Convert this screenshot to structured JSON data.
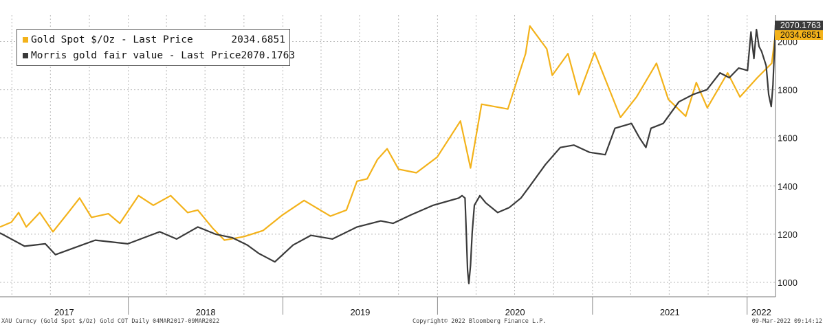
{
  "colors": {
    "gold": "#f3b21a",
    "fair": "#3a3a3a",
    "grid": "#b8b8b8",
    "text": "#111111"
  },
  "legend": {
    "gold_label": "Gold Spot $/Oz - Last Price",
    "gold_value": "2034.6851",
    "fair_label": "Morris gold fair value - Last Price",
    "fair_value": "2070.1763"
  },
  "tags": {
    "fair": "2070.1763",
    "gold": "2034.6851"
  },
  "footer": {
    "left": "XAU Curncy (Gold Spot  $/Oz) Gold COT  Daily 04MAR2017-09MAR2022",
    "center": "Copyright© 2022 Bloomberg Finance L.P.",
    "right": "09-Mar-2022 09:14:12"
  },
  "chart_data": {
    "type": "line",
    "x_start": "2017-03-04",
    "x_end": "2022-03-09",
    "ylim": [
      940,
      2110
    ],
    "y_ticks": [
      1000,
      1200,
      1400,
      1600,
      1800,
      2000
    ],
    "x_tick_labels": [
      "2017",
      "2018",
      "2019",
      "2020",
      "2021",
      "2022"
    ],
    "grid": true,
    "legend_position": "top-left",
    "series": [
      {
        "name": "Gold Spot $/Oz - Last Price",
        "color_key": "gold",
        "points": [
          [
            "2017-03-04",
            1230
          ],
          [
            "2017-03-31",
            1250
          ],
          [
            "2017-04-17",
            1290
          ],
          [
            "2017-05-05",
            1230
          ],
          [
            "2017-06-06",
            1290
          ],
          [
            "2017-07-07",
            1210
          ],
          [
            "2017-08-10",
            1285
          ],
          [
            "2017-09-08",
            1350
          ],
          [
            "2017-10-06",
            1270
          ],
          [
            "2017-11-15",
            1285
          ],
          [
            "2017-12-12",
            1245
          ],
          [
            "2018-01-25",
            1360
          ],
          [
            "2018-03-01",
            1320
          ],
          [
            "2018-04-11",
            1360
          ],
          [
            "2018-05-21",
            1290
          ],
          [
            "2018-06-14",
            1300
          ],
          [
            "2018-07-19",
            1225
          ],
          [
            "2018-08-16",
            1175
          ],
          [
            "2018-10-01",
            1190
          ],
          [
            "2018-11-15",
            1215
          ],
          [
            "2018-12-31",
            1280
          ],
          [
            "2019-02-20",
            1340
          ],
          [
            "2019-04-23",
            1275
          ],
          [
            "2019-05-31",
            1300
          ],
          [
            "2019-06-25",
            1420
          ],
          [
            "2019-07-19",
            1430
          ],
          [
            "2019-08-12",
            1510
          ],
          [
            "2019-09-04",
            1555
          ],
          [
            "2019-10-01",
            1470
          ],
          [
            "2019-11-12",
            1455
          ],
          [
            "2019-12-31",
            1520
          ],
          [
            "2020-02-24",
            1670
          ],
          [
            "2020-03-19",
            1475
          ],
          [
            "2020-04-14",
            1740
          ],
          [
            "2020-06-15",
            1720
          ],
          [
            "2020-07-27",
            1950
          ],
          [
            "2020-08-06",
            2065
          ],
          [
            "2020-09-15",
            1970
          ],
          [
            "2020-09-28",
            1860
          ],
          [
            "2020-11-04",
            1950
          ],
          [
            "2020-11-30",
            1780
          ],
          [
            "2021-01-06",
            1955
          ],
          [
            "2021-03-08",
            1685
          ],
          [
            "2021-04-15",
            1770
          ],
          [
            "2021-06-01",
            1910
          ],
          [
            "2021-06-29",
            1760
          ],
          [
            "2021-08-09",
            1690
          ],
          [
            "2021-09-03",
            1830
          ],
          [
            "2021-09-29",
            1725
          ],
          [
            "2021-11-16",
            1870
          ],
          [
            "2021-12-15",
            1770
          ],
          [
            "2022-01-25",
            1850
          ],
          [
            "2022-02-28",
            1910
          ],
          [
            "2022-03-09",
            2035
          ]
        ]
      },
      {
        "name": "Morris gold fair value - Last Price",
        "color_key": "fair",
        "points": [
          [
            "2017-03-04",
            1205
          ],
          [
            "2017-05-01",
            1150
          ],
          [
            "2017-06-19",
            1160
          ],
          [
            "2017-07-13",
            1115
          ],
          [
            "2017-10-15",
            1175
          ],
          [
            "2017-12-31",
            1160
          ],
          [
            "2018-03-16",
            1210
          ],
          [
            "2018-04-25",
            1180
          ],
          [
            "2018-06-14",
            1230
          ],
          [
            "2018-07-26",
            1200
          ],
          [
            "2018-09-04",
            1185
          ],
          [
            "2018-10-09",
            1155
          ],
          [
            "2018-11-05",
            1120
          ],
          [
            "2018-12-13",
            1085
          ],
          [
            "2019-01-25",
            1155
          ],
          [
            "2019-03-08",
            1195
          ],
          [
            "2019-04-28",
            1180
          ],
          [
            "2019-06-25",
            1230
          ],
          [
            "2019-08-20",
            1255
          ],
          [
            "2019-09-18",
            1245
          ],
          [
            "2019-10-30",
            1280
          ],
          [
            "2019-12-22",
            1320
          ],
          [
            "2020-02-20",
            1350
          ],
          [
            "2020-02-28",
            1360
          ],
          [
            "2020-03-06",
            1350
          ],
          [
            "2020-03-09",
            1200
          ],
          [
            "2020-03-12",
            1050
          ],
          [
            "2020-03-15",
            995
          ],
          [
            "2020-03-19",
            1070
          ],
          [
            "2020-03-23",
            1210
          ],
          [
            "2020-03-28",
            1320
          ],
          [
            "2020-04-10",
            1360
          ],
          [
            "2020-04-24",
            1330
          ],
          [
            "2020-05-22",
            1290
          ],
          [
            "2020-06-18",
            1310
          ],
          [
            "2020-07-16",
            1350
          ],
          [
            "2020-08-06",
            1400
          ],
          [
            "2020-09-12",
            1490
          ],
          [
            "2020-10-17",
            1560
          ],
          [
            "2020-11-18",
            1570
          ],
          [
            "2020-12-25",
            1540
          ],
          [
            "2021-01-31",
            1530
          ],
          [
            "2021-02-23",
            1640
          ],
          [
            "2021-04-03",
            1660
          ],
          [
            "2021-04-22",
            1600
          ],
          [
            "2021-05-07",
            1560
          ],
          [
            "2021-05-19",
            1640
          ],
          [
            "2021-06-17",
            1660
          ],
          [
            "2021-07-24",
            1750
          ],
          [
            "2021-08-26",
            1780
          ],
          [
            "2021-09-28",
            1800
          ],
          [
            "2021-10-29",
            1870
          ],
          [
            "2021-11-20",
            1850
          ],
          [
            "2021-12-12",
            1890
          ],
          [
            "2022-01-02",
            1880
          ],
          [
            "2022-01-10",
            2040
          ],
          [
            "2022-01-17",
            1930
          ],
          [
            "2022-01-23",
            2050
          ],
          [
            "2022-01-29",
            1980
          ],
          [
            "2022-02-04",
            1960
          ],
          [
            "2022-02-15",
            1900
          ],
          [
            "2022-02-21",
            1780
          ],
          [
            "2022-02-27",
            1730
          ],
          [
            "2022-03-03",
            1820
          ],
          [
            "2022-03-06",
            1950
          ],
          [
            "2022-03-09",
            2070
          ]
        ]
      }
    ]
  }
}
